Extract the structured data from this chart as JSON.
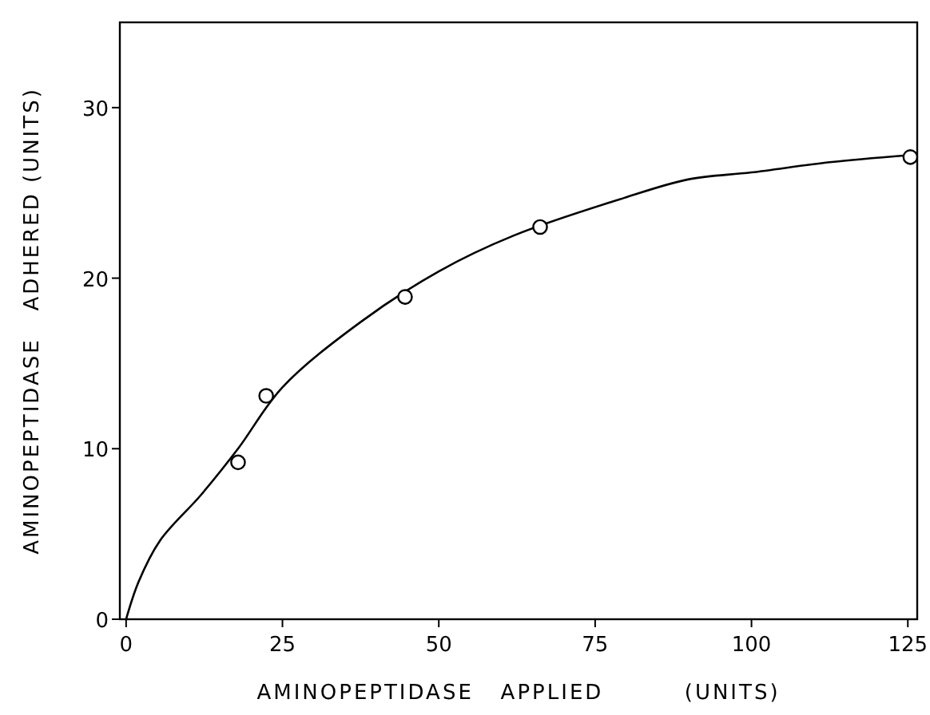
{
  "chart_data": {
    "type": "scatter",
    "xlabel": "AMINOPEPTIDASE   APPLIED         (UNITS)",
    "ylabel": "AMINOPEPTIDASE   ADHERED (UNITS)",
    "xlim": [
      -1,
      126.5
    ],
    "ylim": [
      0,
      35
    ],
    "xticks": [
      0,
      25,
      50,
      75,
      100,
      125
    ],
    "yticks": [
      0,
      10,
      20,
      30
    ],
    "grid": false,
    "series": [
      {
        "type": "line",
        "color": "#000000",
        "marker": "none",
        "line_style": "solid",
        "x": [
          0,
          2,
          5.4,
          12,
          17.9,
          25,
          37.4,
          50,
          62,
          79.6,
          90,
          100,
          112.5,
          124.7
        ],
        "values": [
          0,
          2.2,
          4.6,
          7.3,
          10.0,
          13.6,
          17.4,
          20.4,
          22.5,
          24.7,
          25.8,
          26.2,
          26.8,
          27.2
        ]
      },
      {
        "color": "#000000",
        "marker": "circle",
        "x": [
          17.9,
          22.4,
          44.6,
          66.2,
          125.4
        ],
        "values": [
          9.2,
          13.1,
          18.9,
          23.0,
          27.1
        ]
      }
    ]
  }
}
